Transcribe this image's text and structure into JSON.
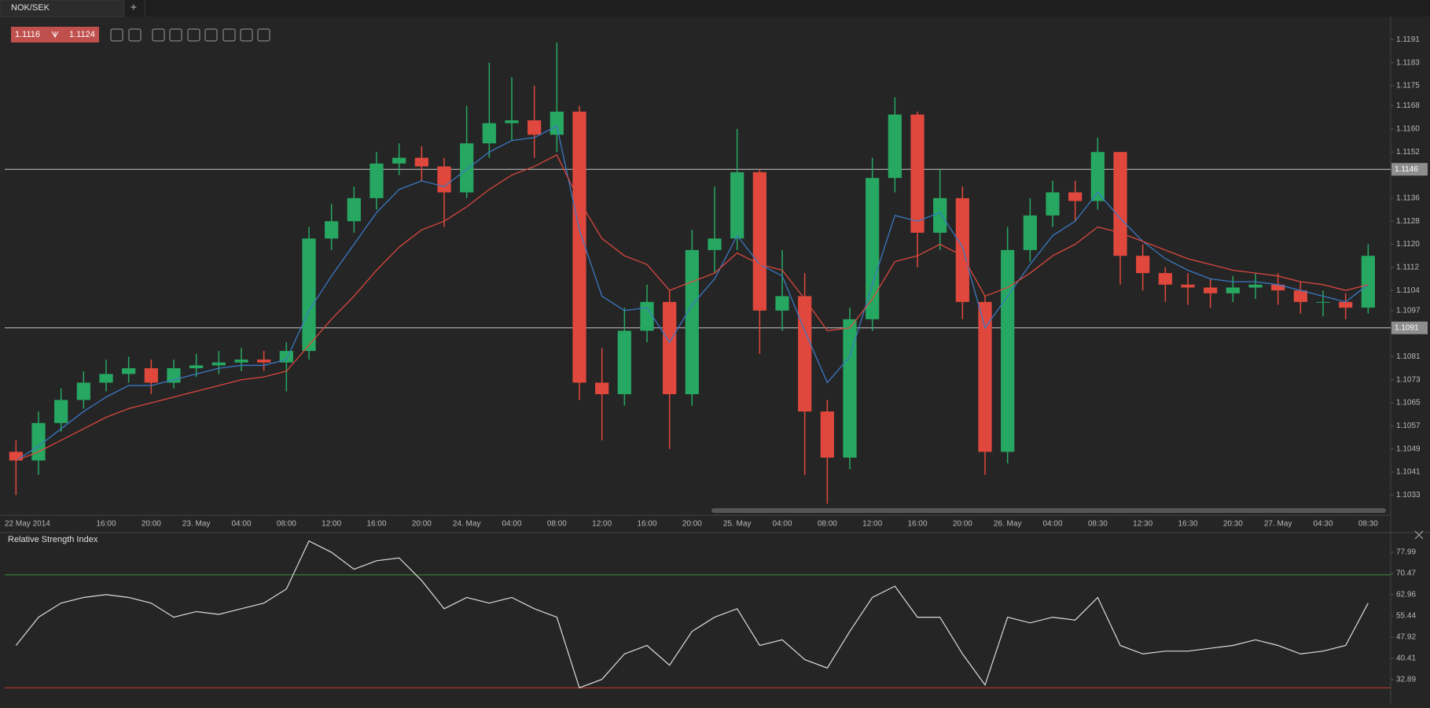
{
  "tab": {
    "title": "NOK/SEK",
    "add": "+"
  },
  "quote": {
    "bid": 1.1116,
    "ask": 1.1124
  },
  "chart_data": [
    {
      "type": "candlestick",
      "categories": [
        "22 May 2014",
        null,
        null,
        null,
        "16:00",
        null,
        "20:00",
        null,
        "23. May",
        null,
        "04:00",
        null,
        "08:00",
        null,
        "12:00",
        null,
        "16:00",
        null,
        "20:00",
        null,
        "24. May",
        null,
        "04:00",
        null,
        "08:00",
        null,
        "12:00",
        null,
        "16:00",
        null,
        "20:00",
        null,
        "25. May",
        null,
        "04:00",
        null,
        "08:00",
        null,
        "12:00",
        null,
        "16:00",
        null,
        "20:00",
        null,
        "26. May",
        null,
        "04:00",
        null,
        "08:30",
        null,
        "12:30",
        null,
        "16:30",
        null,
        "20:30",
        null,
        "27. May",
        null,
        "04:30",
        null,
        "08:30"
      ],
      "open": [
        1.1048,
        1.1045,
        1.1058,
        1.1066,
        1.1072,
        1.1075,
        1.1077,
        1.1072,
        1.1077,
        1.1078,
        1.1079,
        1.108,
        1.1079,
        1.1083,
        1.1122,
        1.1128,
        1.1136,
        1.1148,
        1.115,
        1.1147,
        1.1138,
        1.1155,
        1.1162,
        1.1163,
        1.1158,
        1.1166,
        1.1072,
        1.1068,
        1.109,
        1.11,
        1.1068,
        1.1118,
        1.1122,
        1.1145,
        1.1097,
        1.1102,
        1.1062,
        1.1046,
        1.1094,
        1.1143,
        1.1165,
        1.1124,
        1.1136,
        1.11,
        1.1048,
        1.1118,
        1.113,
        1.1138,
        1.1135,
        1.1152,
        1.1116,
        1.111,
        1.1106,
        1.1105,
        1.1103,
        1.1105,
        1.1106,
        1.1104,
        1.11,
        1.11,
        1.1098
      ],
      "high": [
        1.1052,
        1.1062,
        1.107,
        1.1076,
        1.108,
        1.1081,
        1.108,
        1.108,
        1.1082,
        1.1083,
        1.1084,
        1.1083,
        1.1086,
        1.1126,
        1.1134,
        1.114,
        1.1152,
        1.1155,
        1.1154,
        1.115,
        1.1168,
        1.1183,
        1.1178,
        1.1175,
        1.119,
        1.1168,
        1.1084,
        1.1098,
        1.1106,
        1.1104,
        1.1125,
        1.114,
        1.116,
        1.1146,
        1.1118,
        1.111,
        1.1066,
        1.1098,
        1.115,
        1.1171,
        1.1166,
        1.1146,
        1.114,
        1.1102,
        1.1126,
        1.1136,
        1.1142,
        1.1142,
        1.1157,
        1.1152,
        1.112,
        1.1112,
        1.111,
        1.1108,
        1.1109,
        1.111,
        1.111,
        1.1107,
        1.1104,
        1.1103,
        1.112
      ],
      "low": [
        1.1033,
        1.104,
        1.1055,
        1.1063,
        1.1069,
        1.1072,
        1.1068,
        1.107,
        1.1074,
        1.1075,
        1.1076,
        1.1076,
        1.1069,
        1.108,
        1.1118,
        1.1124,
        1.1132,
        1.1144,
        1.1142,
        1.1126,
        1.1136,
        1.115,
        1.1156,
        1.115,
        1.1152,
        1.1066,
        1.1052,
        1.1064,
        1.1086,
        1.1049,
        1.1064,
        1.111,
        1.1118,
        1.1082,
        1.109,
        1.104,
        1.103,
        1.1042,
        1.109,
        1.1138,
        1.1112,
        1.1118,
        1.1094,
        1.104,
        1.1044,
        1.1114,
        1.1126,
        1.1128,
        1.1132,
        1.1106,
        1.1104,
        1.11,
        1.1099,
        1.1098,
        1.11,
        1.1101,
        1.1099,
        1.1096,
        1.1095,
        1.1094,
        1.1096
      ],
      "close": [
        1.1045,
        1.1058,
        1.1066,
        1.1072,
        1.1075,
        1.1077,
        1.1072,
        1.1077,
        1.1078,
        1.1079,
        1.108,
        1.1079,
        1.1083,
        1.1122,
        1.1128,
        1.1136,
        1.1148,
        1.115,
        1.1147,
        1.1138,
        1.1155,
        1.1162,
        1.1163,
        1.1158,
        1.1166,
        1.1072,
        1.1068,
        1.109,
        1.11,
        1.1068,
        1.1118,
        1.1122,
        1.1145,
        1.1097,
        1.1102,
        1.1062,
        1.1046,
        1.1094,
        1.1143,
        1.1165,
        1.1124,
        1.1136,
        1.11,
        1.1048,
        1.1118,
        1.113,
        1.1138,
        1.1135,
        1.1152,
        1.1116,
        1.111,
        1.1106,
        1.1105,
        1.1103,
        1.1105,
        1.1106,
        1.1104,
        1.11,
        1.11,
        1.1098,
        1.1116
      ],
      "up_color": "#27a862",
      "down_color": "#e0483d",
      "series": [
        {
          "color": "#3a78c2",
          "values": [
            1.1045,
            1.105,
            1.1056,
            1.1062,
            1.1067,
            1.1071,
            1.1071,
            1.1073,
            1.1075,
            1.1077,
            1.1078,
            1.1078,
            1.108,
            1.1097,
            1.1109,
            1.112,
            1.1131,
            1.1139,
            1.1142,
            1.114,
            1.1146,
            1.1152,
            1.1156,
            1.1157,
            1.1161,
            1.1125,
            1.1102,
            1.1097,
            1.1098,
            1.1086,
            1.1099,
            1.1108,
            1.1123,
            1.1113,
            1.1109,
            1.109,
            1.1072,
            1.1081,
            1.1106,
            1.113,
            1.1128,
            1.1131,
            1.1119,
            1.1091,
            1.1102,
            1.1113,
            1.1123,
            1.1128,
            1.1138,
            1.1129,
            1.1121,
            1.1115,
            1.1111,
            1.1108,
            1.1107,
            1.1107,
            1.1106,
            1.1104,
            1.1102,
            1.11,
            1.1106
          ]
        },
        {
          "color": "#d9473e",
          "values": [
            1.1045,
            1.1048,
            1.1052,
            1.1056,
            1.106,
            1.1063,
            1.1065,
            1.1067,
            1.1069,
            1.1071,
            1.1073,
            1.1074,
            1.1076,
            1.1085,
            1.1094,
            1.1102,
            1.1111,
            1.1119,
            1.1125,
            1.1128,
            1.1133,
            1.1139,
            1.1144,
            1.1147,
            1.1151,
            1.1135,
            1.1122,
            1.1116,
            1.1113,
            1.1104,
            1.1107,
            1.111,
            1.1117,
            1.1113,
            1.1111,
            1.1101,
            1.109,
            1.1091,
            1.1101,
            1.1114,
            1.1116,
            1.112,
            1.1116,
            1.1102,
            1.1105,
            1.111,
            1.1116,
            1.112,
            1.1126,
            1.1124,
            1.1121,
            1.1118,
            1.1115,
            1.1113,
            1.1111,
            1.111,
            1.1109,
            1.1107,
            1.1106,
            1.1104,
            1.1106
          ]
        }
      ],
      "hlines": [
        {
          "value": 1.1146,
          "color": "#c8c8c8"
        },
        {
          "value": 1.1091,
          "color": "#c8c8c8"
        }
      ],
      "ylim": [
        1.1026,
        1.1199
      ],
      "yticks": [
        1.1191,
        1.1183,
        1.1175,
        1.1168,
        {
          "value": 1.116,
          "label": "1.1160"
        },
        1.1152,
        1.1136,
        1.1128,
        {
          "value": 1.112,
          "label": "1.1120"
        },
        1.1112,
        1.1104,
        1.1097,
        1.1081,
        1.1073,
        1.1065,
        1.1057,
        1.1049,
        1.1041,
        1.1033
      ]
    },
    {
      "type": "line",
      "title": "Relative Strength Index",
      "color": "#dcdcdc",
      "values": [
        45,
        55,
        60,
        62,
        63,
        62,
        60,
        55,
        57,
        56,
        58,
        60,
        65,
        82,
        78,
        72,
        75,
        76,
        68,
        58,
        62,
        60,
        62,
        58,
        55,
        30,
        33,
        42,
        45,
        38,
        50,
        55,
        58,
        45,
        47,
        40,
        37,
        50,
        62,
        66,
        55,
        55,
        42,
        31,
        55,
        53,
        55,
        54,
        62,
        45,
        42,
        43,
        43,
        44,
        45,
        47,
        45,
        42,
        43,
        45,
        60
      ],
      "levels": [
        {
          "value": 70,
          "color": "#3d8f3d"
        },
        {
          "value": 30,
          "color": "#c8392e"
        }
      ],
      "ylim": [
        24.8,
        84.7
      ],
      "yticks": [
        77.99,
        70.47,
        62.96,
        55.44,
        47.92,
        40.41,
        32.89
      ]
    }
  ]
}
